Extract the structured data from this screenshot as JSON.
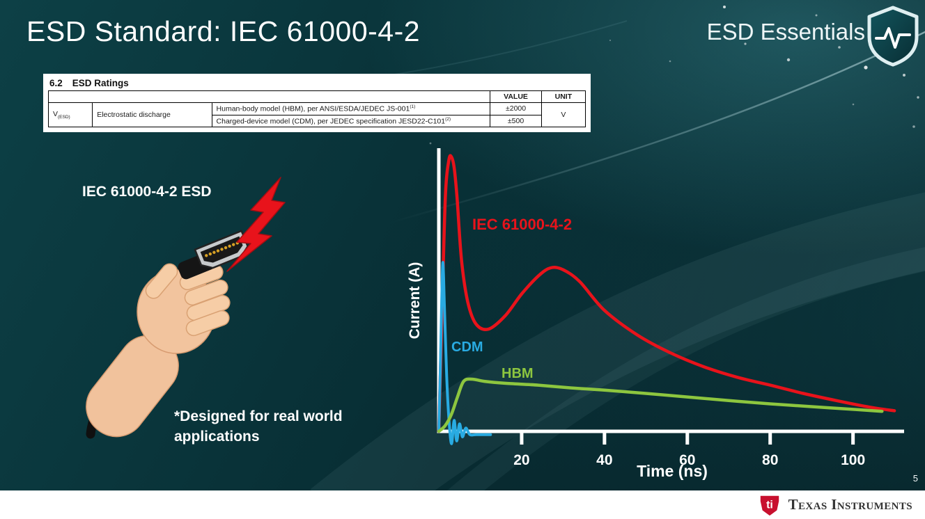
{
  "slide": {
    "title": "ESD Standard: IEC 61000-4-2",
    "series_label": "ESD Essentials",
    "page_number": "5"
  },
  "icons": {
    "series_badge": "shield-pulse-icon",
    "esd_strike": "lightning-bolt-icon",
    "footer_logo": "ti-bug-icon"
  },
  "ratings_table": {
    "section_number": "6.2",
    "section_title": "ESD Ratings",
    "columns": {
      "value": "VALUE",
      "unit": "UNIT"
    },
    "param_symbol": "V",
    "param_subscript": "(ESD)",
    "param_name": "Electrostatic discharge",
    "rows": [
      {
        "description": "Human-body model (HBM), per ANSI/ESDA/JEDEC JS-001",
        "footnote": "(1)",
        "value": "±2000"
      },
      {
        "description": "Charged-device model (CDM), per JEDEC specification JESD22-C101",
        "footnote": "(2)",
        "value": "±500"
      }
    ],
    "unit": "V"
  },
  "illustration": {
    "label": "IEC 61000-4-2 ESD",
    "note_line1": "*Designed for real world",
    "note_line2": "applications"
  },
  "chart_data": {
    "type": "line",
    "title": "",
    "xlabel": "Time (ns)",
    "ylabel": "Current (A)",
    "x_ticks": [
      20,
      40,
      60,
      80,
      100
    ],
    "xlim": [
      0,
      112
    ],
    "ylim": [
      0,
      1
    ],
    "y_scale": "relative amplitude (no y tick labels shown)",
    "grid": false,
    "legend_position": "inline-labels",
    "series": [
      {
        "name": "IEC 61000-4-2",
        "color": "#e8131b",
        "x": [
          0,
          0.8,
          1.6,
          2.4,
          3,
          3.7,
          4.4,
          5.5,
          7,
          9,
          12,
          16,
          20,
          24,
          27,
          30,
          34,
          40,
          48,
          56,
          64,
          72,
          80,
          88,
          96,
          104,
          110
        ],
        "y": [
          0,
          0.45,
          0.86,
          0.985,
          1.0,
          0.96,
          0.85,
          0.62,
          0.47,
          0.39,
          0.372,
          0.42,
          0.5,
          0.565,
          0.595,
          0.588,
          0.545,
          0.44,
          0.35,
          0.285,
          0.235,
          0.197,
          0.168,
          0.138,
          0.112,
          0.088,
          0.075
        ]
      },
      {
        "name": "CDM",
        "color": "#29abe2",
        "x": [
          0,
          0.35,
          0.7,
          1.0,
          1.35,
          1.9,
          2.5,
          3.1,
          3.7,
          4.3,
          5.0,
          5.7,
          6.5,
          7.5,
          9,
          11,
          12.5
        ],
        "y": [
          0,
          0.22,
          0.48,
          0.615,
          0.46,
          0.2,
          0.03,
          -0.045,
          0.04,
          -0.035,
          0.027,
          -0.02,
          0.012,
          -0.012,
          -0.012,
          -0.012,
          -0.012
        ]
      },
      {
        "name": "HBM",
        "color": "#8dc63f",
        "x": [
          0,
          1.5,
          3,
          4.5,
          6,
          8,
          11,
          16,
          24,
          32,
          40,
          50,
          60,
          70,
          80,
          90,
          100,
          107
        ],
        "y": [
          0,
          0.02,
          0.06,
          0.125,
          0.182,
          0.19,
          0.182,
          0.175,
          0.168,
          0.158,
          0.15,
          0.138,
          0.125,
          0.112,
          0.1,
          0.09,
          0.08,
          0.073
        ]
      }
    ]
  },
  "footer": {
    "logo_text": "ti",
    "brand": "Texas Instruments"
  }
}
